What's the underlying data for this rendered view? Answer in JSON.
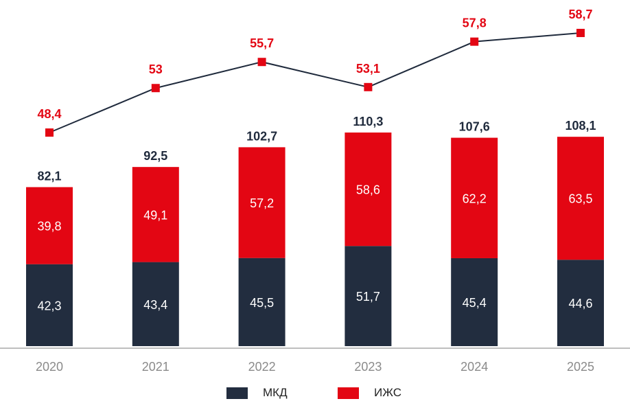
{
  "chart_data": {
    "type": "bar",
    "stacked": true,
    "categories": [
      "2020",
      "2021",
      "2022",
      "2023",
      "2024",
      "2025"
    ],
    "series": [
      {
        "name": "МКД",
        "color": "#222d3f",
        "values": [
          42.3,
          43.4,
          45.5,
          51.7,
          45.4,
          44.6
        ],
        "labels": [
          "42,3",
          "43,4",
          "45,5",
          "51,7",
          "45,4",
          "44,6"
        ]
      },
      {
        "name": "ИЖС",
        "color": "#e30613",
        "values": [
          39.8,
          49.1,
          57.2,
          58.6,
          62.2,
          63.5
        ],
        "labels": [
          "39,8",
          "49,1",
          "57,2",
          "58,6",
          "62,2",
          "63,5"
        ]
      }
    ],
    "totals": [
      82.1,
      92.5,
      102.7,
      110.3,
      107.6,
      108.1
    ],
    "total_labels": [
      "82,1",
      "92,5",
      "102,7",
      "110,3",
      "107,6",
      "108,1"
    ],
    "line_series": {
      "color": "#e30613",
      "values": [
        48.4,
        53,
        55.7,
        53.1,
        57.8,
        58.7
      ],
      "labels": [
        "48,4",
        "53",
        "55,7",
        "53,1",
        "57,8",
        "58,7"
      ]
    },
    "legend": [
      "МКД",
      "ИЖС"
    ],
    "legend_position": "bottom",
    "grid": false
  }
}
